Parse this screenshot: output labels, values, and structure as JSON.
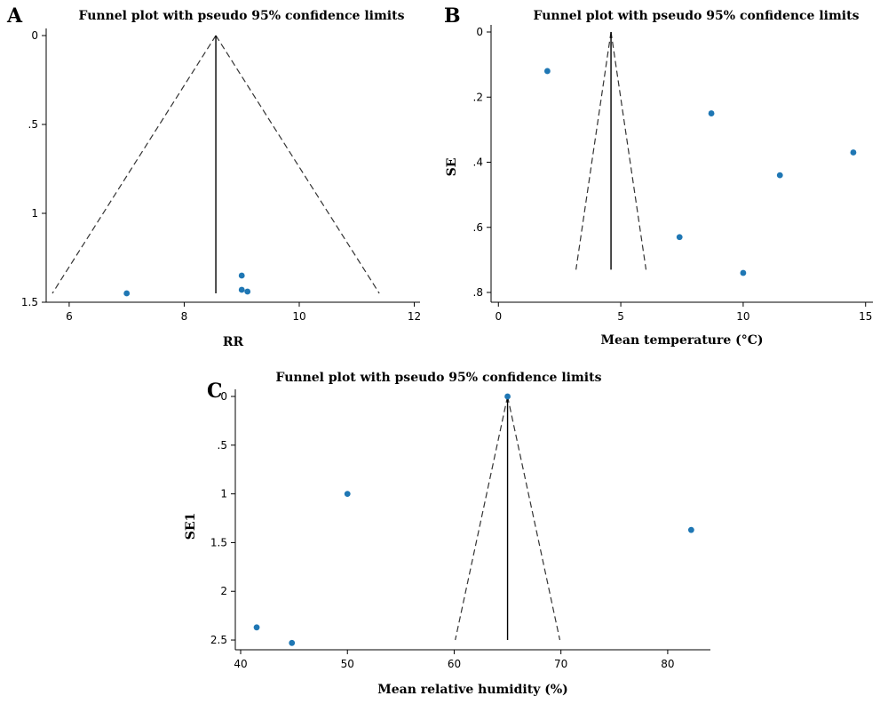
{
  "chart_data": [
    {
      "type": "scatter",
      "panel": "A",
      "title": "Funnel plot with pseudo 95% confidence limits",
      "xlabel": "RR",
      "ylabel": "",
      "xlim": [
        5.6,
        12.1
      ],
      "ylim": [
        0,
        1.5
      ],
      "y_reversed": true,
      "xticks": [
        6,
        8,
        10,
        12
      ],
      "xtick_labels": [
        "6",
        "8",
        "10",
        "12"
      ],
      "yticks": [
        0,
        0.5,
        1,
        1.5
      ],
      "ytick_labels": [
        "0",
        ".5",
        "1",
        "1.5"
      ],
      "center": 8.55,
      "funnel_se_max": 1.45,
      "points": [
        {
          "x": 7.0,
          "y": 1.45
        },
        {
          "x": 9.0,
          "y": 1.35
        },
        {
          "x": 9.0,
          "y": 1.43
        },
        {
          "x": 9.1,
          "y": 1.44
        }
      ]
    },
    {
      "type": "scatter",
      "panel": "B",
      "title": "Funnel plot with pseudo 95% confidence limits",
      "xlabel": "Mean temperature (°C)",
      "ylabel": "SE",
      "xlim": [
        -0.3,
        15.3
      ],
      "ylim": [
        0,
        0.83
      ],
      "y_reversed": true,
      "xticks": [
        0,
        5,
        10,
        15
      ],
      "xtick_labels": [
        "0",
        "5",
        "10",
        "15"
      ],
      "yticks": [
        0,
        0.2,
        0.4,
        0.6,
        0.8
      ],
      "ytick_labels": [
        "0",
        ".2",
        ".4",
        ".6",
        ".8"
      ],
      "center": 4.6,
      "funnel_se_max": 0.73,
      "points": [
        {
          "x": 2.0,
          "y": 0.12
        },
        {
          "x": 8.7,
          "y": 0.25
        },
        {
          "x": 14.5,
          "y": 0.37
        },
        {
          "x": 11.5,
          "y": 0.44
        },
        {
          "x": 7.4,
          "y": 0.63
        },
        {
          "x": 10.0,
          "y": 0.74
        }
      ]
    },
    {
      "type": "scatter",
      "panel": "C",
      "title": "Funnel plot with pseudo 95% confidence limits",
      "xlabel": "Mean relative humidity (%)",
      "ylabel": "SE1",
      "xlim": [
        39.5,
        84.0
      ],
      "ylim": [
        0,
        2.6
      ],
      "y_reversed": true,
      "xticks": [
        40,
        50,
        60,
        70,
        80
      ],
      "xtick_labels": [
        "40",
        "50",
        "60",
        "70",
        "80"
      ],
      "yticks": [
        0,
        0.5,
        1,
        1.5,
        2,
        2.5
      ],
      "ytick_labels": [
        "0",
        ".5",
        "1",
        "1.5",
        "2",
        "2.5"
      ],
      "center": 65.0,
      "funnel_se_max": 2.5,
      "points": [
        {
          "x": 65.0,
          "y": 0.0
        },
        {
          "x": 50.0,
          "y": 1.0
        },
        {
          "x": 82.2,
          "y": 1.37
        },
        {
          "x": 41.5,
          "y": 2.37
        },
        {
          "x": 44.8,
          "y": 2.53
        }
      ]
    }
  ]
}
